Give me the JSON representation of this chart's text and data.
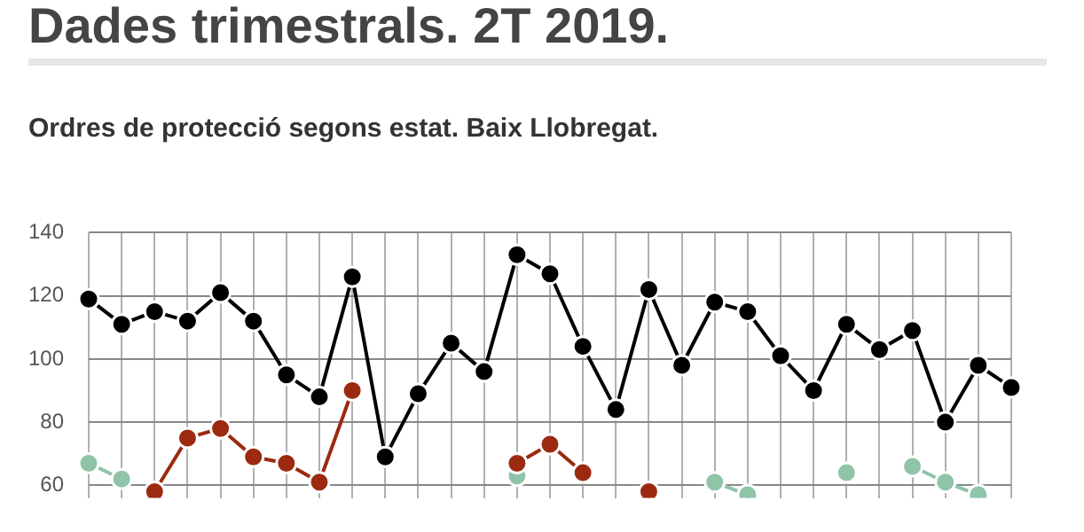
{
  "chart_data": {
    "type": "line",
    "title": "Dades trimestrals. 2T 2019.",
    "subtitle": "Ordres de protecció segons estat. Baix Llobregat.",
    "categories": [
      null,
      null,
      null,
      null,
      null,
      null,
      null,
      null,
      null,
      null,
      null,
      null,
      null,
      null,
      null,
      null,
      null,
      null,
      null,
      null,
      null,
      null,
      null,
      null,
      null,
      null,
      null,
      null,
      null
    ],
    "series": [
      {
        "color": "#000000",
        "values": [
          119,
          111,
          115,
          112,
          121,
          112,
          95,
          88,
          126,
          69,
          89,
          105,
          96,
          133,
          127,
          104,
          84,
          122,
          98,
          118,
          115,
          101,
          90,
          111,
          103,
          109,
          80,
          98,
          91
        ]
      },
      {
        "color": "#9b2a10",
        "values": [
          null,
          null,
          58,
          75,
          78,
          69,
          67,
          61,
          90,
          null,
          null,
          null,
          null,
          67,
          73,
          64,
          null,
          58,
          null,
          null,
          null,
          null,
          null,
          null,
          null,
          null,
          null,
          null,
          null
        ]
      },
      {
        "color": "#8fc4a8",
        "values": [
          67,
          62,
          null,
          null,
          null,
          null,
          null,
          null,
          null,
          null,
          null,
          null,
          null,
          63,
          null,
          null,
          null,
          null,
          null,
          61,
          57,
          null,
          null,
          64,
          null,
          66,
          61,
          57,
          null
        ]
      }
    ],
    "ylim": [
      56,
      140
    ],
    "yticks": [
      60,
      80,
      100,
      120,
      140
    ],
    "grid": true,
    "legend": false,
    "marker": "circle",
    "line_style": "solid",
    "tick_labels": "y"
  }
}
